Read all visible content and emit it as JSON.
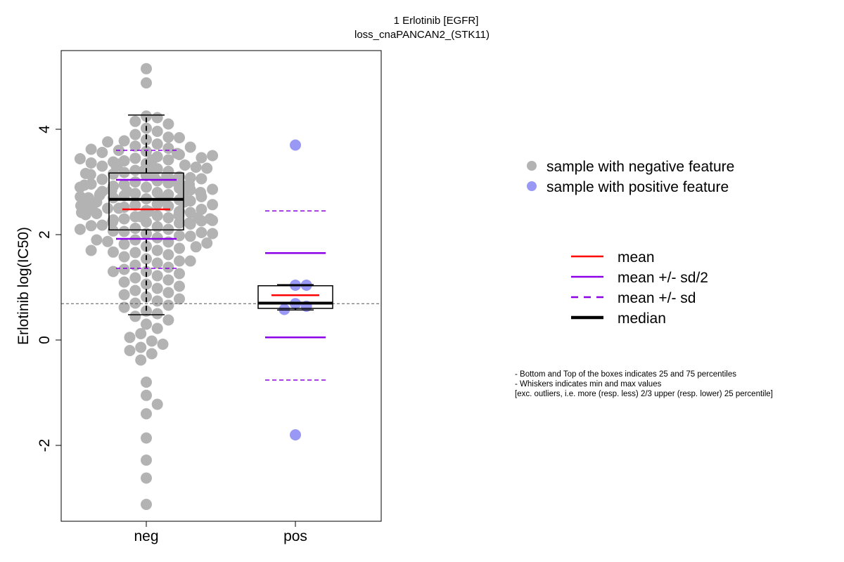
{
  "chart_data": {
    "type": "boxplot-beeswarm",
    "title": "1 Erlotinib [EGFR]",
    "subtitle": "loss_cnaPANCAN2_(STK11)",
    "ylabel": "Erlotinib log(IC50)",
    "categories": [
      "neg",
      "pos"
    ],
    "y_ticks": [
      -2,
      0,
      2,
      4
    ],
    "y_tick_labels": [
      "-2",
      "0",
      "2",
      "4"
    ],
    "ylim": [
      -3.4,
      5.5
    ],
    "reference_line": 0.69,
    "groups": [
      {
        "name": "neg",
        "color": "#b3b3b3",
        "box": {
          "q1": 2.09,
          "median": 2.67,
          "q3": 3.17,
          "whisker_low": 0.48,
          "whisker_high": 4.27
        },
        "mean": 2.48,
        "mean_minus_half_sd": 1.92,
        "mean_plus_half_sd": 3.04,
        "mean_minus_sd": 1.36,
        "mean_plus_sd": 3.6,
        "points": [
          5.15,
          4.88,
          4.25,
          4.22,
          4.15,
          4.1,
          4.02,
          3.96,
          3.9,
          3.85,
          3.8,
          3.78,
          3.72,
          3.68,
          3.64,
          3.6,
          3.58,
          3.52,
          3.48,
          3.45,
          3.42,
          3.4,
          3.38,
          3.35,
          3.32,
          3.3,
          3.28,
          3.25,
          3.22,
          3.2,
          3.18,
          3.15,
          3.12,
          3.1,
          3.08,
          3.05,
          3.02,
          3.0,
          2.98,
          2.95,
          2.92,
          2.9,
          2.88,
          2.85,
          2.82,
          2.8,
          2.78,
          2.76,
          2.74,
          2.72,
          2.7,
          2.68,
          2.66,
          2.64,
          2.62,
          2.6,
          2.58,
          2.56,
          2.54,
          2.52,
          2.5,
          2.48,
          2.46,
          2.44,
          2.42,
          2.4,
          2.38,
          2.36,
          2.34,
          2.32,
          2.3,
          2.28,
          2.26,
          2.24,
          2.22,
          2.2,
          2.18,
          2.15,
          2.12,
          2.1,
          2.06,
          2.02,
          1.98,
          1.94,
          1.9,
          1.86,
          1.82,
          1.78,
          1.74,
          1.7,
          1.66,
          1.62,
          1.58,
          1.54,
          1.5,
          1.46,
          1.42,
          1.38,
          1.34,
          1.3,
          1.26,
          1.22,
          1.18,
          1.14,
          1.1,
          1.06,
          1.02,
          0.98,
          0.94,
          0.9,
          0.86,
          0.82,
          0.78,
          0.74,
          0.7,
          0.66,
          0.62,
          0.55,
          0.5,
          0.45,
          0.38,
          0.3,
          0.22,
          0.12,
          0.05,
          -0.02,
          -0.08,
          -0.14,
          -0.2,
          -0.26,
          -0.38,
          -0.8,
          -1.05,
          -1.22,
          -1.4,
          -1.86,
          -2.28,
          -2.62,
          -3.12,
          3.84,
          3.76,
          3.66,
          3.56,
          3.46,
          3.36,
          3.26,
          3.16,
          3.06,
          2.96,
          2.86,
          2.77,
          2.67,
          2.57,
          2.47,
          2.37,
          2.27,
          2.17,
          2.07,
          1.97,
          1.87,
          1.77,
          1.67,
          3.5,
          3.3,
          3.1,
          2.9,
          2.7,
          2.5,
          2.3,
          2.1,
          1.9,
          1.7,
          1.5,
          1.3,
          3.44,
          3.24,
          3.04,
          2.84,
          2.64,
          2.44,
          2.24,
          2.04,
          1.84,
          3.62,
          3.42,
          3.22,
          3.02,
          2.82,
          2.62,
          2.42,
          2.22,
          2.02,
          3.54,
          3.34,
          3.14,
          2.94,
          2.74,
          2.54,
          2.34,
          3.12,
          2.92,
          2.72,
          2.52,
          2.32,
          2.95,
          2.75,
          2.55,
          2.8,
          2.6
        ]
      },
      {
        "name": "pos",
        "color": "#9999f5",
        "box": {
          "q1": 0.6,
          "median": 0.7,
          "q3": 1.03,
          "whisker_low": 0.57,
          "whisker_high": 1.05
        },
        "mean": 0.85,
        "mean_minus_half_sd": 0.05,
        "mean_plus_half_sd": 1.65,
        "mean_minus_sd": -0.76,
        "mean_plus_sd": 2.45,
        "points": [
          3.7,
          1.04,
          1.04,
          0.69,
          0.64,
          0.58,
          -1.8
        ]
      }
    ],
    "legend_points": [
      {
        "label": "sample with negative feature",
        "color": "#b3b3b3"
      },
      {
        "label": "sample with positive feature",
        "color": "#9999f5"
      }
    ],
    "legend_lines": [
      {
        "label": "mean",
        "color": "#ff0000",
        "style": "solid"
      },
      {
        "label": "mean +/- sd/2",
        "color": "#8b00e6",
        "style": "solid"
      },
      {
        "label": "mean +/- sd",
        "color": "#8b00e6",
        "style": "dashed"
      },
      {
        "label": "median",
        "color": "#000000",
        "style": "thick"
      }
    ],
    "notes": [
      "- Bottom and Top of the boxes indicates 25 and 75 percentiles",
      "- Whiskers indicates min and max values",
      "[exc. outliers, i.e. more (resp. less) 2/3 upper (resp. lower) 25 percentile]"
    ]
  }
}
